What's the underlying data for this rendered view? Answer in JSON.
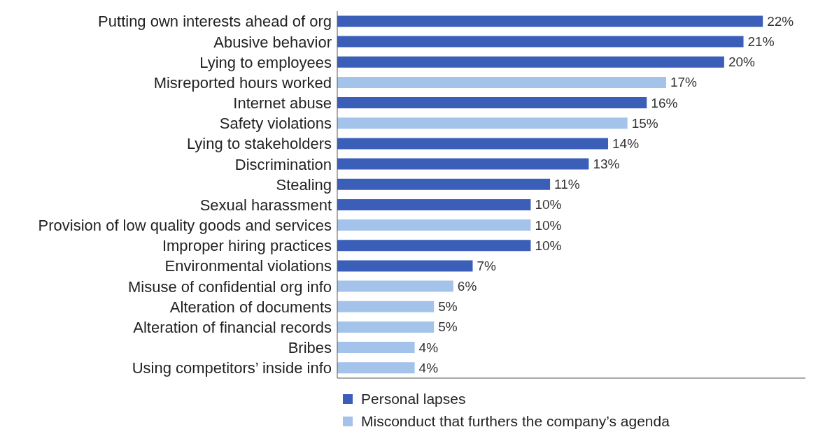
{
  "chart_data": {
    "type": "bar",
    "orientation": "horizontal",
    "stacked": true,
    "tick_labels": "y",
    "legend": "bottom",
    "categories": [
      "Putting own interests ahead of org",
      "Abusive behavior",
      "Lying to employees",
      "Misreported hours worked",
      "Internet abuse",
      "Safety violations",
      "Lying to stakeholders",
      "Discrimination",
      "Stealing",
      "Sexual harassment",
      "Provision of low quality goods and services",
      "Improper hiring practices",
      "Environmental violations",
      "Misuse of confidential org info",
      "Alteration of documents",
      "Alteration of financial records",
      "Bribes",
      "Using competitors’ inside info"
    ],
    "series": [
      {
        "name": "Personal lapses",
        "color": "#3b5fb8",
        "values": [
          22,
          21,
          20,
          null,
          16,
          null,
          14,
          13,
          11,
          10,
          null,
          10,
          7,
          null,
          null,
          null,
          null,
          null
        ],
        "value_labels": [
          "22%",
          "21%",
          "20%",
          null,
          "16%",
          null,
          "14%",
          "13%",
          "11%",
          "10%",
          null,
          "10%",
          "7%",
          null,
          null,
          null,
          null,
          null
        ]
      },
      {
        "name": "Misconduct that furthers the company’s agenda",
        "color": "#a4c3ea",
        "values": [
          null,
          null,
          null,
          17,
          null,
          15,
          null,
          null,
          null,
          null,
          10,
          null,
          null,
          6,
          5,
          5,
          4,
          4
        ],
        "value_labels": [
          null,
          null,
          null,
          "17%",
          null,
          "15%",
          null,
          null,
          null,
          null,
          "10%",
          null,
          null,
          "6%",
          "5%",
          "5%",
          "4%",
          "4%"
        ]
      }
    ]
  }
}
